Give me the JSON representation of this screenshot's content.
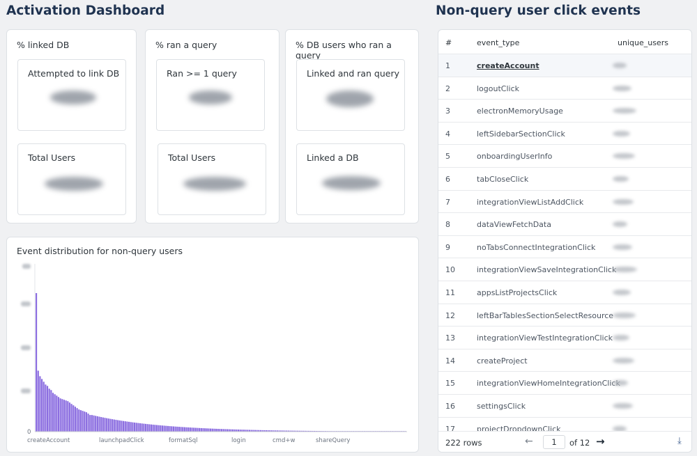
{
  "left_title": "Activation Dashboard",
  "right_title": "Non-query user click events",
  "metric_cards": [
    {
      "title": "% linked DB",
      "top_label": "Attempted to link DB",
      "bottom_label": "Total Users"
    },
    {
      "title": "% ran a query",
      "top_label": "Ran >= 1 query",
      "bottom_label": "Total Users"
    },
    {
      "title": "% DB users who ran a query",
      "top_label": "Linked and ran query",
      "bottom_label": "Linked a DB"
    }
  ],
  "table": {
    "headers": {
      "index": "#",
      "event_type": "event_type",
      "unique_users": "unique_users"
    },
    "rows": [
      {
        "index": "1",
        "event_type": "createAccount"
      },
      {
        "index": "2",
        "event_type": "logoutClick"
      },
      {
        "index": "3",
        "event_type": "electronMemoryUsage"
      },
      {
        "index": "4",
        "event_type": "leftSidebarSectionClick"
      },
      {
        "index": "5",
        "event_type": "onboardingUserInfo"
      },
      {
        "index": "6",
        "event_type": "tabCloseClick"
      },
      {
        "index": "7",
        "event_type": "integrationViewListAddClick"
      },
      {
        "index": "8",
        "event_type": "dataViewFetchData"
      },
      {
        "index": "9",
        "event_type": "noTabsConnectIntegrationClick"
      },
      {
        "index": "10",
        "event_type": "integrationViewSaveIntegrationClick"
      },
      {
        "index": "11",
        "event_type": "appsListProjectsClick"
      },
      {
        "index": "12",
        "event_type": "leftBarTablesSectionSelectResource"
      },
      {
        "index": "13",
        "event_type": "integrationViewTestIntegrationClick"
      },
      {
        "index": "14",
        "event_type": "createProject"
      },
      {
        "index": "15",
        "event_type": "integrationViewHomeIntegrationClick"
      },
      {
        "index": "16",
        "event_type": "settingsClick"
      },
      {
        "index": "17",
        "event_type": "projectDropdownClick"
      }
    ],
    "footer": {
      "rows_count": "222 rows",
      "prev_icon": "arrow-left-icon",
      "page": "1",
      "of_pages": "of 12",
      "next_icon": "arrow-right-icon",
      "download_icon": "download-icon"
    }
  },
  "chart_data": {
    "type": "bar",
    "title": "Event distribution for non-query users",
    "ylim": [
      0,
      1
    ],
    "y_tick_visible": "0",
    "category_labels": [
      "createAccount",
      "launchpadClick",
      "formatSql",
      "login",
      "cmd+w",
      "shareQuery"
    ],
    "bar_count": 200,
    "relative_values": [
      1.0,
      0.44,
      0.4,
      0.38,
      0.36,
      0.34,
      0.33,
      0.31,
      0.3,
      0.28,
      0.27,
      0.26,
      0.25,
      0.24,
      0.235,
      0.23,
      0.225,
      0.22,
      0.21,
      0.2,
      0.19,
      0.18,
      0.17,
      0.16,
      0.155,
      0.15,
      0.145,
      0.14,
      0.13,
      0.12
    ],
    "bar_color": "#8b6de0"
  }
}
